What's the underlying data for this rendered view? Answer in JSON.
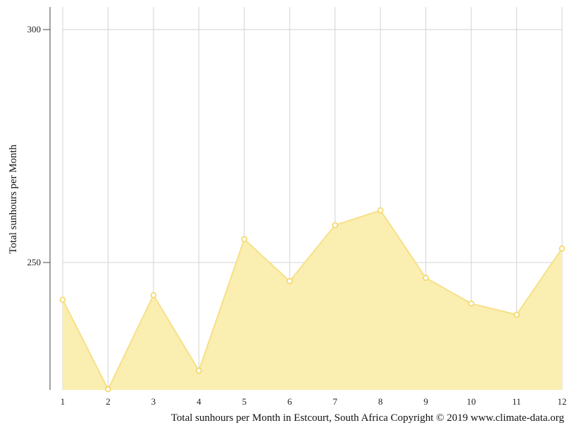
{
  "chart_data": {
    "type": "area",
    "x": [
      1,
      2,
      3,
      4,
      5,
      6,
      7,
      8,
      9,
      10,
      11,
      12
    ],
    "series": [
      {
        "values": [
          242,
          222.8,
          243,
          226.8,
          255,
          246,
          258,
          261.2,
          246.7,
          241.2,
          238.8,
          253
        ]
      }
    ],
    "ylabel": "Total sunhours per Month",
    "caption": "Total sunhours per Month in Estcourt, South Africa Copyright © 2019 www.climate-data.org",
    "yticks": [
      250,
      300
    ],
    "ylim": [
      222.8,
      305
    ],
    "xlim": [
      1,
      12
    ],
    "grid": true,
    "colors": {
      "fill": "#faeeb0",
      "line": "#f7e089",
      "marker_stroke": "#f3d45c",
      "marker_fill": "#ffffff",
      "grid": "#d3d3d3",
      "axis": "#444444"
    }
  }
}
